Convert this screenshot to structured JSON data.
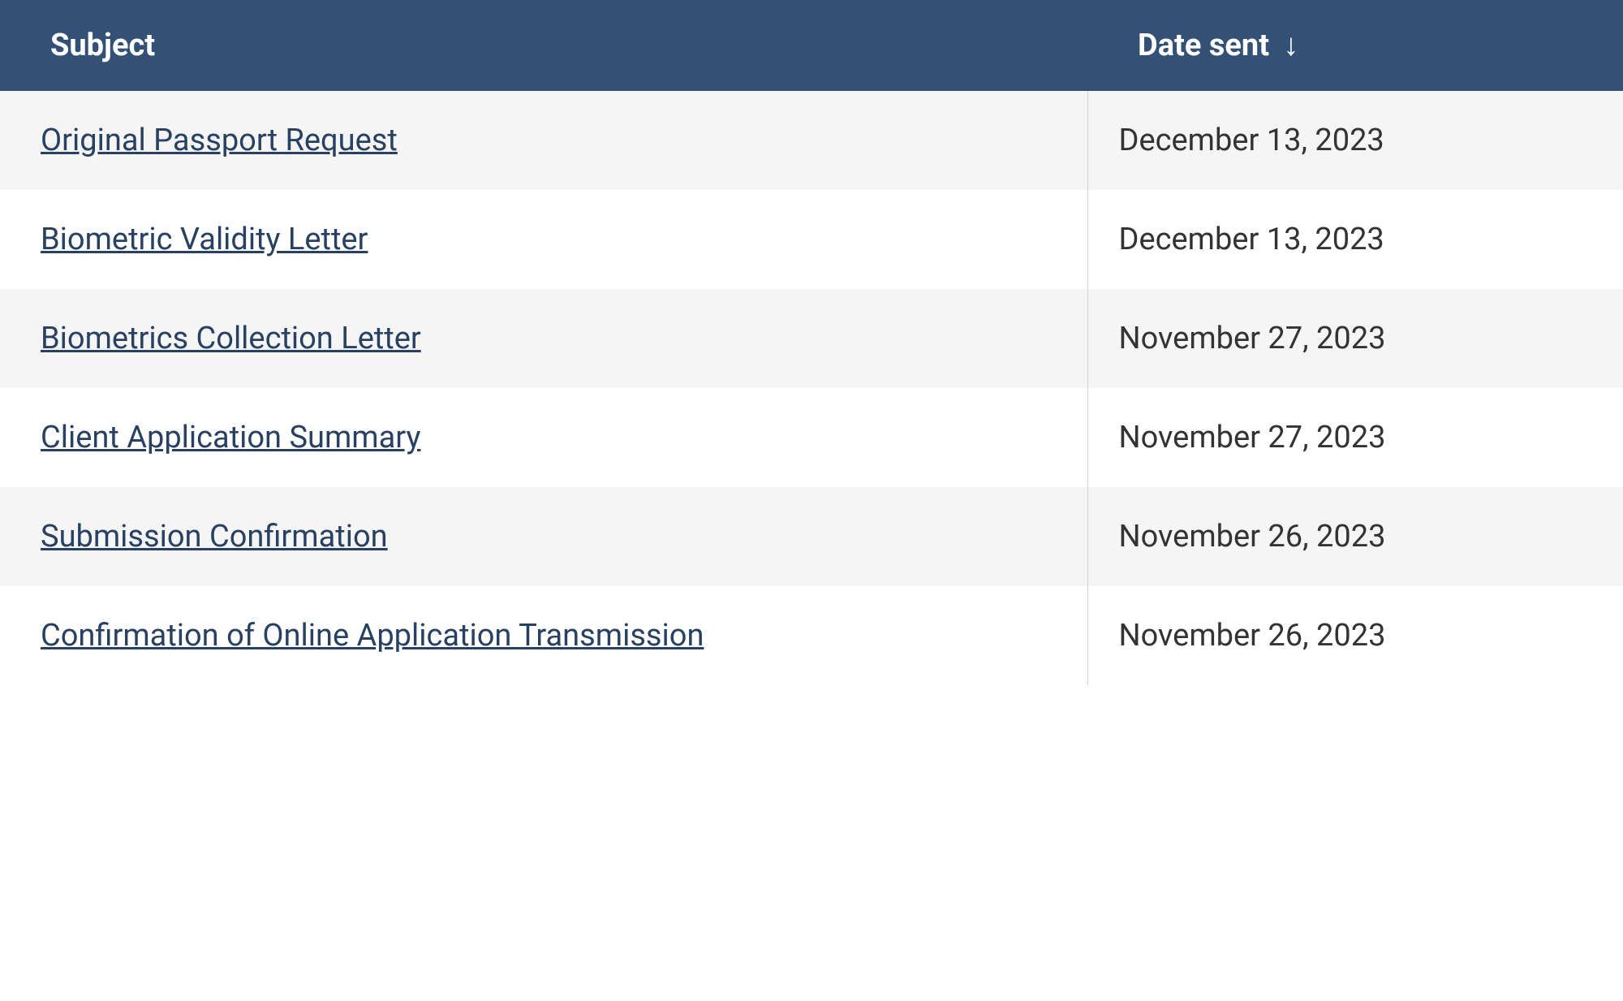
{
  "table": {
    "header_bg": "#335075",
    "header_text_color": "#ffffff",
    "row_odd_bg": "#f5f5f5",
    "row_even_bg": "#ffffff",
    "link_color": "#284162",
    "text_color": "#333333",
    "border_color": "#d4d4d4",
    "font_size": 38,
    "columns": {
      "subject": "Subject",
      "date_sent": "Date sent"
    },
    "sort_indicator": "↓",
    "sort_column": "date_sent",
    "rows": [
      {
        "subject": "Original Passport Request",
        "date_sent": "December 13, 2023"
      },
      {
        "subject": "Biometric Validity Letter",
        "date_sent": "December 13, 2023"
      },
      {
        "subject": "Biometrics Collection Letter",
        "date_sent": "November 27, 2023"
      },
      {
        "subject": "Client Application Summary",
        "date_sent": "November 27, 2023"
      },
      {
        "subject": "Submission Confirmation",
        "date_sent": "November 26, 2023"
      },
      {
        "subject": "Confirmation of Online Application Transmission",
        "date_sent": "November 26, 2023"
      }
    ]
  }
}
